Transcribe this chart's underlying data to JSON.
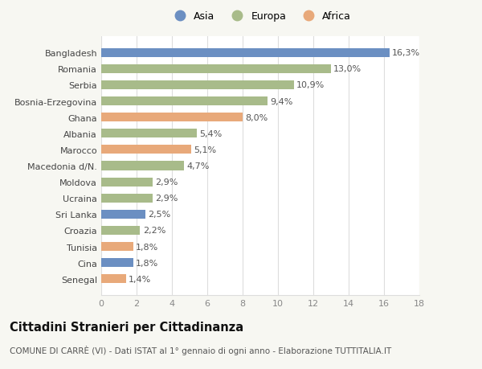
{
  "countries": [
    "Bangladesh",
    "Romania",
    "Serbia",
    "Bosnia-Erzegovina",
    "Ghana",
    "Albania",
    "Marocco",
    "Macedonia d/N.",
    "Moldova",
    "Ucraina",
    "Sri Lanka",
    "Croazia",
    "Tunisia",
    "Cina",
    "Senegal"
  ],
  "values": [
    16.3,
    13.0,
    10.9,
    9.4,
    8.0,
    5.4,
    5.1,
    4.7,
    2.9,
    2.9,
    2.5,
    2.2,
    1.8,
    1.8,
    1.4
  ],
  "labels": [
    "16,3%",
    "13,0%",
    "10,9%",
    "9,4%",
    "8,0%",
    "5,4%",
    "5,1%",
    "4,7%",
    "2,9%",
    "2,9%",
    "2,5%",
    "2,2%",
    "1,8%",
    "1,8%",
    "1,4%"
  ],
  "continents": [
    "Asia",
    "Europa",
    "Europa",
    "Europa",
    "Africa",
    "Europa",
    "Africa",
    "Europa",
    "Europa",
    "Europa",
    "Asia",
    "Europa",
    "Africa",
    "Asia",
    "Africa"
  ],
  "colors": {
    "Asia": "#6b8fc2",
    "Europa": "#a8bb8a",
    "Africa": "#e8a97a"
  },
  "title": "Cittadini Stranieri per Cittadinanza",
  "subtitle": "COMUNE DI CARRÈ (VI) - Dati ISTAT al 1° gennaio di ogni anno - Elaborazione TUTTITALIA.IT",
  "xlim": [
    0,
    18
  ],
  "xticks": [
    0,
    2,
    4,
    6,
    8,
    10,
    12,
    14,
    16,
    18
  ],
  "background_color": "#f7f7f2",
  "bar_background": "#ffffff",
  "grid_color": "#dddddd",
  "label_fontsize": 8,
  "tick_fontsize": 8,
  "title_fontsize": 10.5,
  "subtitle_fontsize": 7.5
}
